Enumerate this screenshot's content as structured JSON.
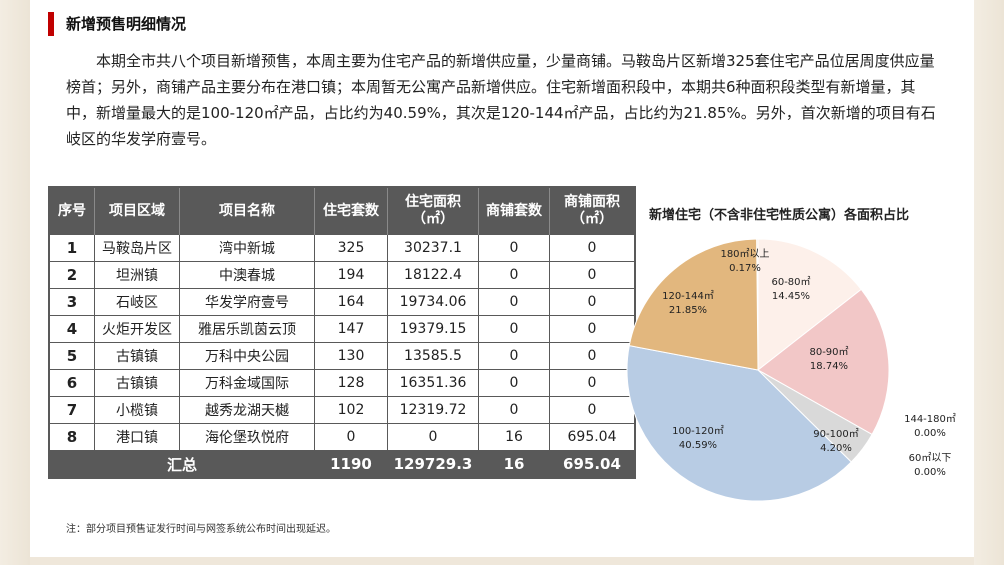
{
  "title": "新增预售明细情况",
  "paragraph": "本期全市共八个项目新增预售，本周主要为住宅产品的新增供应量，少量商铺。马鞍岛片区新增325套住宅产品位居周度供应量榜首；另外，商铺产品主要分布在港口镇；本周暂无公寓产品新增供应。住宅新增面积段中，本期共6种面积段类型有新增量，其中，新增量最大的是100-120㎡产品，占比约为40.59%，其次是120-144㎡产品，占比约为21.85%。另外，首次新增的项目有石岐区的华发学府壹号。",
  "table": {
    "headers": [
      "序号",
      "项目区域",
      "项目名称",
      "住宅套数",
      "住宅面积（㎡）",
      "商铺套数",
      "商铺面积（㎡）"
    ],
    "rows": [
      [
        "1",
        "马鞍岛片区",
        "湾中新城",
        "325",
        "30237.1",
        "0",
        "0"
      ],
      [
        "2",
        "坦洲镇",
        "中澳春城",
        "194",
        "18122.4",
        "0",
        "0"
      ],
      [
        "3",
        "石岐区",
        "华发学府壹号",
        "164",
        "19734.06",
        "0",
        "0"
      ],
      [
        "4",
        "火炬开发区",
        "雅居乐凯茵云顶",
        "147",
        "19379.15",
        "0",
        "0"
      ],
      [
        "5",
        "古镇镇",
        "万科中央公园",
        "130",
        "13585.5",
        "0",
        "0"
      ],
      [
        "6",
        "古镇镇",
        "万科金域国际",
        "128",
        "16351.36",
        "0",
        "0"
      ],
      [
        "7",
        "小榄镇",
        "越秀龙湖天樾",
        "102",
        "12319.72",
        "0",
        "0"
      ],
      [
        "8",
        "港口镇",
        "海伦堡玖悦府",
        "0",
        "0",
        "16",
        "695.04"
      ]
    ],
    "total": {
      "label": "汇总",
      "res_units": "1190",
      "res_area": "129729.3",
      "shop_units": "16",
      "shop_area": "695.04"
    }
  },
  "chart_data": {
    "type": "pie",
    "title": "新增住宅（不含非住宅性质公寓）各面积占比",
    "slices": [
      {
        "name": "180㎡以上",
        "pct_label": "0.17%",
        "value": 0.17,
        "color": "#f8e4d4"
      },
      {
        "name": "60-80㎡",
        "pct_label": "14.45%",
        "value": 14.45,
        "color": "#fdf0ea"
      },
      {
        "name": "80-90㎡",
        "pct_label": "18.74%",
        "value": 18.74,
        "color": "#f2c7c7"
      },
      {
        "name": "90-100㎡",
        "pct_label": "4.20%",
        "value": 4.2,
        "color": "#d9d9d9"
      },
      {
        "name": "144-180㎡",
        "pct_label": "0.00%",
        "value": 0,
        "color": "#cccccc"
      },
      {
        "name": "60㎡以下",
        "pct_label": "0.00%",
        "value": 0,
        "color": "#cccccc"
      },
      {
        "name": "100-120㎡",
        "pct_label": "40.59%",
        "value": 40.59,
        "color": "#b8cce4"
      },
      {
        "name": "120-144㎡",
        "pct_label": "21.85%",
        "value": 21.85,
        "color": "#e2b77e"
      }
    ]
  },
  "note": "注：部分项目预售证发行时间与网签系统公布时间出现延迟。"
}
